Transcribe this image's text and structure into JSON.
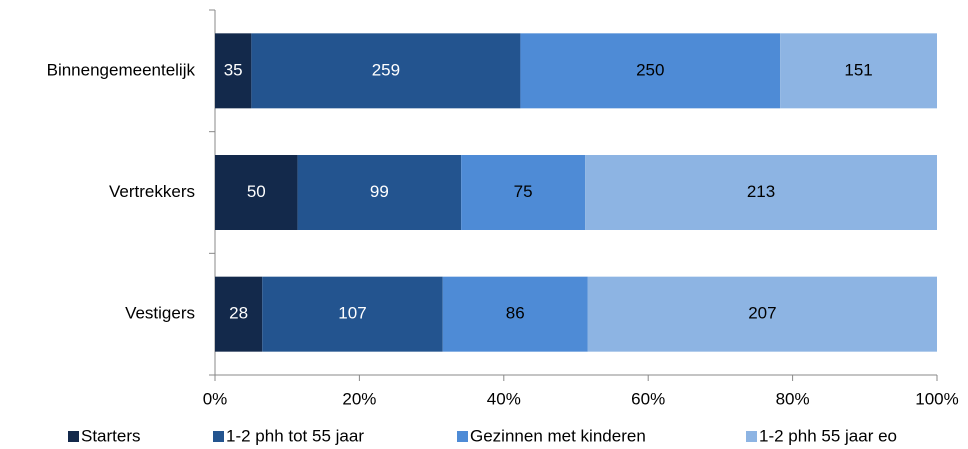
{
  "chart_data": {
    "type": "stacked-bar-horizontal",
    "stacking": "percent",
    "categories": [
      "Binnengemeentelijk",
      "Vertrekkers",
      "Vestigers"
    ],
    "series": [
      {
        "name": "Starters",
        "color": "#13294b",
        "label_color": "#ffffff",
        "values": [
          35,
          50,
          28
        ]
      },
      {
        "name": "1-2 phh tot 55 jaar",
        "color": "#23548f",
        "label_color": "#ffffff",
        "values": [
          259,
          99,
          107
        ]
      },
      {
        "name": "Gezinnen met kinderen",
        "color": "#4e8bd6",
        "label_color": "#000000",
        "values": [
          250,
          75,
          86
        ]
      },
      {
        "name": "1-2 phh 55 jaar eo",
        "color": "#8db4e3",
        "label_color": "#000000",
        "values": [
          151,
          213,
          207
        ]
      }
    ],
    "xlim": [
      0,
      100
    ],
    "xticks": [
      {
        "value": 0,
        "label": "0%"
      },
      {
        "value": 20,
        "label": "20%"
      },
      {
        "value": 40,
        "label": "40%"
      },
      {
        "value": 60,
        "label": "60%"
      },
      {
        "value": 80,
        "label": "80%"
      },
      {
        "value": 100,
        "label": "100%"
      }
    ],
    "grid": false,
    "legend": "bottom"
  }
}
